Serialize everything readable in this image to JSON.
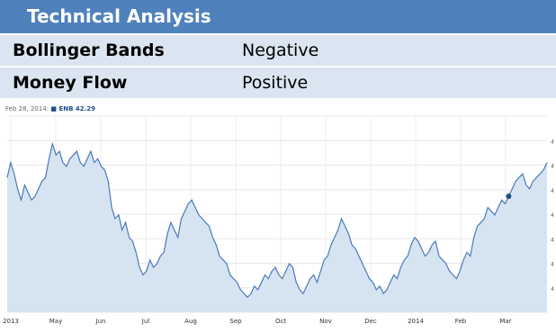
{
  "technical_analysis": {
    "title": "Technical Analysis",
    "rows": [
      {
        "label": "Bollinger Bands",
        "value": "Negative"
      },
      {
        "label": "Money Flow",
        "value": "Positive"
      }
    ]
  },
  "chart_legend": {
    "date": "Feb 28, 2014:",
    "series": "ENB 42.29"
  },
  "colors": {
    "header_bg": "#4f81bd",
    "row_bg": "#dbe5f1",
    "line": "#4a7ab8",
    "fill": "#d6e4f2"
  },
  "chart_data": {
    "type": "area",
    "title": "",
    "xlabel": "",
    "ylabel": "",
    "x_ticks": [
      "2013",
      "May",
      "Jun",
      "Jul",
      "Aug",
      "Sep",
      "Oct",
      "Nov",
      "Dec",
      "2014",
      "Feb",
      "Mar"
    ],
    "series": [
      {
        "name": "ENB",
        "values": [
          72,
          80,
          74,
          66,
          60,
          68,
          64,
          60,
          62,
          66,
          70,
          72,
          82,
          90,
          84,
          86,
          80,
          78,
          82,
          84,
          86,
          80,
          78,
          82,
          86,
          80,
          82,
          78,
          76,
          70,
          56,
          50,
          52,
          44,
          48,
          40,
          38,
          32,
          24,
          20,
          22,
          28,
          24,
          26,
          30,
          32,
          42,
          48,
          44,
          40,
          50,
          54,
          58,
          60,
          56,
          52,
          50,
          48,
          46,
          40,
          36,
          30,
          28,
          26,
          20,
          18,
          16,
          12,
          10,
          8,
          10,
          14,
          12,
          16,
          20,
          18,
          22,
          24,
          20,
          18,
          22,
          26,
          24,
          16,
          12,
          10,
          14,
          18,
          20,
          16,
          22,
          28,
          30,
          36,
          40,
          44,
          50,
          46,
          42,
          36,
          34,
          30,
          26,
          22,
          18,
          16,
          12,
          14,
          10,
          12,
          16,
          20,
          18,
          24,
          28,
          30,
          36,
          40,
          38,
          34,
          30,
          32,
          36,
          38,
          30,
          28,
          26,
          22,
          20,
          18,
          22,
          28,
          32,
          30,
          40,
          46,
          48,
          50,
          56,
          54,
          52,
          56,
          60,
          58,
          62,
          66,
          70,
          72,
          74,
          68,
          66,
          70,
          72,
          74,
          76,
          80
        ]
      }
    ],
    "highlight_value": 42.29
  }
}
